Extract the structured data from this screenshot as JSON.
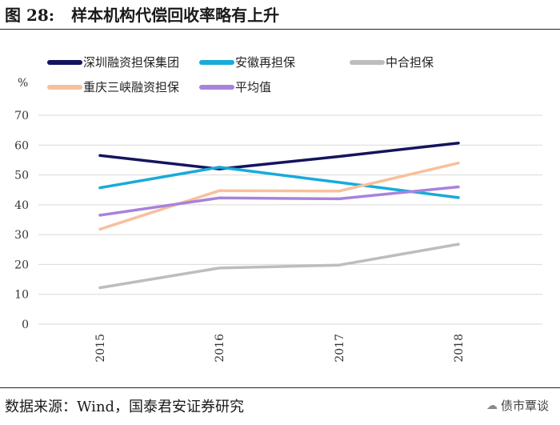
{
  "figure": {
    "number": "图 28:",
    "title": "样本机构代偿回收率略有上升"
  },
  "source": "数据来源：Wind，国泰君安证券研究",
  "watermark": "债市覃谈",
  "chart_data": {
    "type": "line",
    "ylabel": "%",
    "ylim": [
      0,
      70
    ],
    "yticks": [
      0,
      10,
      20,
      30,
      40,
      50,
      60,
      70
    ],
    "categories": [
      "2015",
      "2016",
      "2017",
      "2018"
    ],
    "grid": true,
    "legend_position": "top",
    "series": [
      {
        "name": "深圳融资担保集团",
        "color": "#14145e",
        "values": [
          56.5,
          52.0,
          56.2,
          60.7
        ]
      },
      {
        "name": "安徽再担保",
        "color": "#1aaad9",
        "values": [
          45.7,
          52.6,
          47.5,
          42.4
        ]
      },
      {
        "name": "中合担保",
        "color": "#bdbdbd",
        "values": [
          12.2,
          18.8,
          19.8,
          26.8
        ]
      },
      {
        "name": "重庆三峡融资担保",
        "color": "#f7c09b",
        "values": [
          31.8,
          44.7,
          44.6,
          54.0
        ]
      },
      {
        "name": "平均值",
        "color": "#a982d9",
        "values": [
          36.5,
          42.3,
          42.0,
          46.0
        ]
      }
    ]
  }
}
